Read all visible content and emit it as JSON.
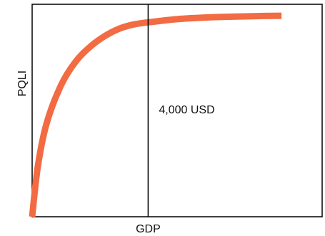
{
  "chart_data": {
    "type": "line",
    "title": "",
    "xlabel": "GDP",
    "ylabel": "PQLI",
    "xlim": [
      0,
      10000
    ],
    "ylim": [
      0,
      100
    ],
    "grid": false,
    "series": [
      {
        "color": "#F26B43",
        "x": [
          0,
          200,
          500,
          1000,
          1500,
          2000,
          2500,
          3000,
          3500,
          4000,
          5000,
          6000,
          7000,
          8000,
          8600
        ],
        "values": [
          0,
          24,
          44,
          62,
          73,
          80,
          85,
          88.5,
          90.5,
          91.5,
          93,
          93.8,
          94.2,
          94.5,
          94.6
        ]
      }
    ],
    "annotations": [
      {
        "type": "vline",
        "x": 4000,
        "label": "4,000 USD",
        "color": "#000000"
      }
    ]
  }
}
